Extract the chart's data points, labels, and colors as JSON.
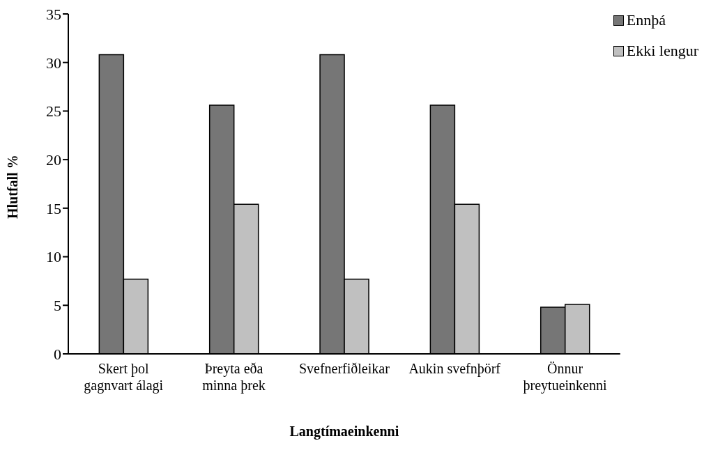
{
  "chart_data": {
    "type": "bar",
    "xlabel": "Langtímaeinkenni",
    "ylabel": "Hlutfall %",
    "categories": [
      "Skert þol\ngagnvart álagi",
      "Þreyta eða\nminna þrek",
      "Svefnerfiðleikar",
      "Aukin svefnþörf",
      "Önnur\nþreytueinkenni"
    ],
    "series": [
      {
        "name": "Ennþá",
        "color": "#767676",
        "values": [
          30.8,
          25.6,
          30.8,
          25.6,
          4.8
        ]
      },
      {
        "name": "Ekki lengur",
        "color": "#c0c0c0",
        "values": [
          7.7,
          15.4,
          7.7,
          15.4,
          5.1
        ]
      }
    ],
    "ylim": [
      0,
      35
    ],
    "yticks": [
      0,
      5,
      10,
      15,
      20,
      25,
      30,
      35
    ],
    "grid": false,
    "legend": "top right"
  }
}
